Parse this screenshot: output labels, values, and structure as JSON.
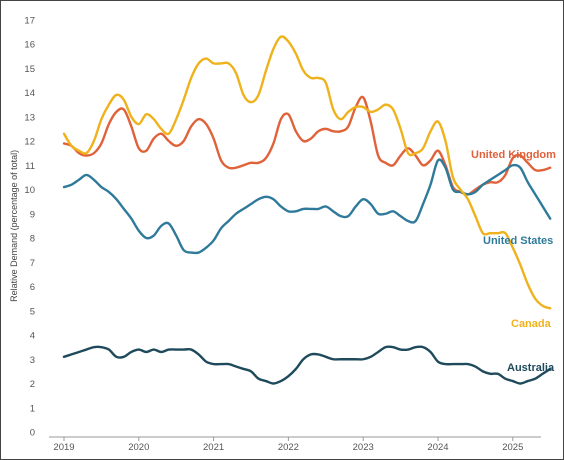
{
  "chart_data": {
    "type": "line",
    "title": "",
    "xlabel": "",
    "ylabel": "Relative Demand (percentage of total)",
    "ylim": [
      0,
      17
    ],
    "xlim": [
      2019.0,
      2025.4
    ],
    "grid": false,
    "legend": "inline labels at line ends",
    "y_ticks": [
      "0",
      "1",
      "2",
      "3",
      "4",
      "5",
      "6",
      "7",
      "8",
      "9",
      "10",
      "11",
      "12",
      "13",
      "14",
      "15",
      "16",
      "17"
    ],
    "x_ticks": [
      "2019",
      "2020",
      "2021",
      "2022",
      "2023",
      "2024",
      "2025"
    ],
    "series": [
      {
        "name": "United Kingdom",
        "color": "#e0623a",
        "points": [
          [
            2019.0,
            11.9
          ],
          [
            2019.1,
            11.8
          ],
          [
            2019.2,
            11.5
          ],
          [
            2019.3,
            11.4
          ],
          [
            2019.4,
            11.5
          ],
          [
            2019.5,
            11.9
          ],
          [
            2019.6,
            12.7
          ],
          [
            2019.7,
            13.2
          ],
          [
            2019.8,
            13.3
          ],
          [
            2019.9,
            12.6
          ],
          [
            2020.0,
            11.7
          ],
          [
            2020.1,
            11.6
          ],
          [
            2020.2,
            12.1
          ],
          [
            2020.3,
            12.3
          ],
          [
            2020.4,
            12.0
          ],
          [
            2020.5,
            11.8
          ],
          [
            2020.6,
            12.0
          ],
          [
            2020.7,
            12.6
          ],
          [
            2020.8,
            12.9
          ],
          [
            2020.9,
            12.7
          ],
          [
            2021.0,
            12.1
          ],
          [
            2021.1,
            11.2
          ],
          [
            2021.2,
            10.9
          ],
          [
            2021.3,
            10.9
          ],
          [
            2021.4,
            11.0
          ],
          [
            2021.5,
            11.1
          ],
          [
            2021.6,
            11.1
          ],
          [
            2021.7,
            11.3
          ],
          [
            2021.8,
            11.9
          ],
          [
            2021.9,
            12.9
          ],
          [
            2022.0,
            13.1
          ],
          [
            2022.1,
            12.4
          ],
          [
            2022.2,
            12.0
          ],
          [
            2022.3,
            12.1
          ],
          [
            2022.4,
            12.4
          ],
          [
            2022.5,
            12.5
          ],
          [
            2022.6,
            12.4
          ],
          [
            2022.7,
            12.4
          ],
          [
            2022.8,
            12.6
          ],
          [
            2022.9,
            13.4
          ],
          [
            2023.0,
            13.8
          ],
          [
            2023.1,
            12.8
          ],
          [
            2023.2,
            11.4
          ],
          [
            2023.3,
            11.1
          ],
          [
            2023.4,
            11.0
          ],
          [
            2023.5,
            11.4
          ],
          [
            2023.6,
            11.7
          ],
          [
            2023.7,
            11.4
          ],
          [
            2023.8,
            11.0
          ],
          [
            2023.9,
            11.2
          ],
          [
            2024.0,
            11.6
          ],
          [
            2024.1,
            11.0
          ],
          [
            2024.2,
            10.1
          ],
          [
            2024.3,
            9.9
          ],
          [
            2024.4,
            9.8
          ],
          [
            2024.5,
            10.0
          ],
          [
            2024.6,
            10.2
          ],
          [
            2024.7,
            10.3
          ],
          [
            2024.8,
            10.3
          ],
          [
            2024.9,
            10.6
          ],
          [
            2025.0,
            11.3
          ],
          [
            2025.1,
            11.4
          ],
          [
            2025.2,
            11.1
          ],
          [
            2025.3,
            10.8
          ],
          [
            2025.4,
            10.8
          ],
          [
            2025.5,
            10.9
          ]
        ]
      },
      {
        "name": "United States",
        "color": "#2f7a9a",
        "points": [
          [
            2019.0,
            10.1
          ],
          [
            2019.1,
            10.2
          ],
          [
            2019.2,
            10.4
          ],
          [
            2019.3,
            10.6
          ],
          [
            2019.4,
            10.4
          ],
          [
            2019.5,
            10.1
          ],
          [
            2019.6,
            9.9
          ],
          [
            2019.7,
            9.6
          ],
          [
            2019.8,
            9.2
          ],
          [
            2019.9,
            8.8
          ],
          [
            2020.0,
            8.3
          ],
          [
            2020.1,
            8.0
          ],
          [
            2020.2,
            8.1
          ],
          [
            2020.3,
            8.5
          ],
          [
            2020.4,
            8.6
          ],
          [
            2020.5,
            8.1
          ],
          [
            2020.6,
            7.5
          ],
          [
            2020.7,
            7.4
          ],
          [
            2020.8,
            7.4
          ],
          [
            2020.9,
            7.6
          ],
          [
            2021.0,
            7.9
          ],
          [
            2021.1,
            8.4
          ],
          [
            2021.2,
            8.7
          ],
          [
            2021.3,
            9.0
          ],
          [
            2021.4,
            9.2
          ],
          [
            2021.5,
            9.4
          ],
          [
            2021.6,
            9.6
          ],
          [
            2021.7,
            9.7
          ],
          [
            2021.8,
            9.6
          ],
          [
            2021.9,
            9.3
          ],
          [
            2022.0,
            9.1
          ],
          [
            2022.1,
            9.1
          ],
          [
            2022.2,
            9.2
          ],
          [
            2022.3,
            9.2
          ],
          [
            2022.4,
            9.2
          ],
          [
            2022.5,
            9.3
          ],
          [
            2022.6,
            9.1
          ],
          [
            2022.7,
            8.9
          ],
          [
            2022.8,
            8.9
          ],
          [
            2022.9,
            9.3
          ],
          [
            2023.0,
            9.6
          ],
          [
            2023.1,
            9.4
          ],
          [
            2023.2,
            9.0
          ],
          [
            2023.3,
            9.0
          ],
          [
            2023.4,
            9.1
          ],
          [
            2023.5,
            8.9
          ],
          [
            2023.6,
            8.7
          ],
          [
            2023.7,
            8.7
          ],
          [
            2023.8,
            9.4
          ],
          [
            2023.9,
            10.2
          ],
          [
            2024.0,
            11.2
          ],
          [
            2024.1,
            10.9
          ],
          [
            2024.2,
            10.0
          ],
          [
            2024.3,
            9.9
          ],
          [
            2024.4,
            9.8
          ],
          [
            2024.5,
            9.9
          ],
          [
            2024.6,
            10.2
          ],
          [
            2024.7,
            10.4
          ],
          [
            2024.8,
            10.6
          ],
          [
            2024.9,
            10.8
          ],
          [
            2025.0,
            11.0
          ],
          [
            2025.1,
            10.9
          ],
          [
            2025.2,
            10.3
          ],
          [
            2025.3,
            9.8
          ],
          [
            2025.4,
            9.3
          ],
          [
            2025.5,
            8.8
          ]
        ]
      },
      {
        "name": "Canada",
        "color": "#efb21c",
        "points": [
          [
            2019.0,
            12.3
          ],
          [
            2019.1,
            11.8
          ],
          [
            2019.2,
            11.6
          ],
          [
            2019.3,
            11.5
          ],
          [
            2019.4,
            12.0
          ],
          [
            2019.5,
            12.9
          ],
          [
            2019.6,
            13.5
          ],
          [
            2019.7,
            13.9
          ],
          [
            2019.8,
            13.7
          ],
          [
            2019.9,
            13.0
          ],
          [
            2020.0,
            12.7
          ],
          [
            2020.1,
            13.1
          ],
          [
            2020.2,
            12.9
          ],
          [
            2020.3,
            12.5
          ],
          [
            2020.4,
            12.3
          ],
          [
            2020.5,
            12.9
          ],
          [
            2020.6,
            13.7
          ],
          [
            2020.7,
            14.6
          ],
          [
            2020.8,
            15.2
          ],
          [
            2020.9,
            15.4
          ],
          [
            2021.0,
            15.2
          ],
          [
            2021.1,
            15.2
          ],
          [
            2021.2,
            15.2
          ],
          [
            2021.3,
            14.8
          ],
          [
            2021.4,
            13.9
          ],
          [
            2021.5,
            13.6
          ],
          [
            2021.6,
            13.9
          ],
          [
            2021.7,
            14.9
          ],
          [
            2021.8,
            15.8
          ],
          [
            2021.9,
            16.3
          ],
          [
            2022.0,
            16.1
          ],
          [
            2022.1,
            15.6
          ],
          [
            2022.2,
            14.9
          ],
          [
            2022.3,
            14.6
          ],
          [
            2022.4,
            14.6
          ],
          [
            2022.5,
            14.4
          ],
          [
            2022.6,
            13.3
          ],
          [
            2022.7,
            12.9
          ],
          [
            2022.8,
            13.2
          ],
          [
            2022.9,
            13.4
          ],
          [
            2023.0,
            13.4
          ],
          [
            2023.1,
            13.2
          ],
          [
            2023.2,
            13.3
          ],
          [
            2023.3,
            13.5
          ],
          [
            2023.4,
            13.3
          ],
          [
            2023.5,
            12.5
          ],
          [
            2023.6,
            11.5
          ],
          [
            2023.7,
            11.5
          ],
          [
            2023.8,
            11.7
          ],
          [
            2023.9,
            12.4
          ],
          [
            2024.0,
            12.8
          ],
          [
            2024.1,
            12.0
          ],
          [
            2024.2,
            10.5
          ],
          [
            2024.3,
            10.0
          ],
          [
            2024.4,
            9.6
          ],
          [
            2024.5,
            8.9
          ],
          [
            2024.6,
            8.2
          ],
          [
            2024.7,
            8.2
          ],
          [
            2024.8,
            8.2
          ],
          [
            2024.9,
            8.2
          ],
          [
            2025.0,
            7.6
          ],
          [
            2025.1,
            6.9
          ],
          [
            2025.2,
            6.1
          ],
          [
            2025.3,
            5.5
          ],
          [
            2025.4,
            5.2
          ],
          [
            2025.5,
            5.1
          ]
        ]
      },
      {
        "name": "Australia",
        "color": "#1f4a5c",
        "points": [
          [
            2019.0,
            3.1
          ],
          [
            2019.1,
            3.2
          ],
          [
            2019.2,
            3.3
          ],
          [
            2019.3,
            3.4
          ],
          [
            2019.4,
            3.5
          ],
          [
            2019.5,
            3.5
          ],
          [
            2019.6,
            3.4
          ],
          [
            2019.7,
            3.1
          ],
          [
            2019.8,
            3.1
          ],
          [
            2019.9,
            3.3
          ],
          [
            2020.0,
            3.4
          ],
          [
            2020.1,
            3.3
          ],
          [
            2020.2,
            3.4
          ],
          [
            2020.3,
            3.3
          ],
          [
            2020.4,
            3.4
          ],
          [
            2020.5,
            3.4
          ],
          [
            2020.6,
            3.4
          ],
          [
            2020.7,
            3.4
          ],
          [
            2020.8,
            3.2
          ],
          [
            2020.9,
            2.9
          ],
          [
            2021.0,
            2.8
          ],
          [
            2021.1,
            2.8
          ],
          [
            2021.2,
            2.8
          ],
          [
            2021.3,
            2.7
          ],
          [
            2021.4,
            2.6
          ],
          [
            2021.5,
            2.5
          ],
          [
            2021.6,
            2.2
          ],
          [
            2021.7,
            2.1
          ],
          [
            2021.8,
            2.0
          ],
          [
            2021.9,
            2.1
          ],
          [
            2022.0,
            2.3
          ],
          [
            2022.1,
            2.6
          ],
          [
            2022.2,
            3.0
          ],
          [
            2022.3,
            3.2
          ],
          [
            2022.4,
            3.2
          ],
          [
            2022.5,
            3.1
          ],
          [
            2022.6,
            3.0
          ],
          [
            2022.7,
            3.0
          ],
          [
            2022.8,
            3.0
          ],
          [
            2022.9,
            3.0
          ],
          [
            2023.0,
            3.0
          ],
          [
            2023.1,
            3.1
          ],
          [
            2023.2,
            3.3
          ],
          [
            2023.3,
            3.5
          ],
          [
            2023.4,
            3.5
          ],
          [
            2023.5,
            3.4
          ],
          [
            2023.6,
            3.4
          ],
          [
            2023.7,
            3.5
          ],
          [
            2023.8,
            3.5
          ],
          [
            2023.9,
            3.3
          ],
          [
            2024.0,
            2.9
          ],
          [
            2024.1,
            2.8
          ],
          [
            2024.2,
            2.8
          ],
          [
            2024.3,
            2.8
          ],
          [
            2024.4,
            2.8
          ],
          [
            2024.5,
            2.7
          ],
          [
            2024.6,
            2.5
          ],
          [
            2024.7,
            2.4
          ],
          [
            2024.8,
            2.4
          ],
          [
            2024.9,
            2.2
          ],
          [
            2025.0,
            2.1
          ],
          [
            2025.1,
            2.0
          ],
          [
            2025.2,
            2.1
          ],
          [
            2025.3,
            2.2
          ],
          [
            2025.4,
            2.4
          ],
          [
            2025.5,
            2.6
          ]
        ]
      }
    ]
  }
}
